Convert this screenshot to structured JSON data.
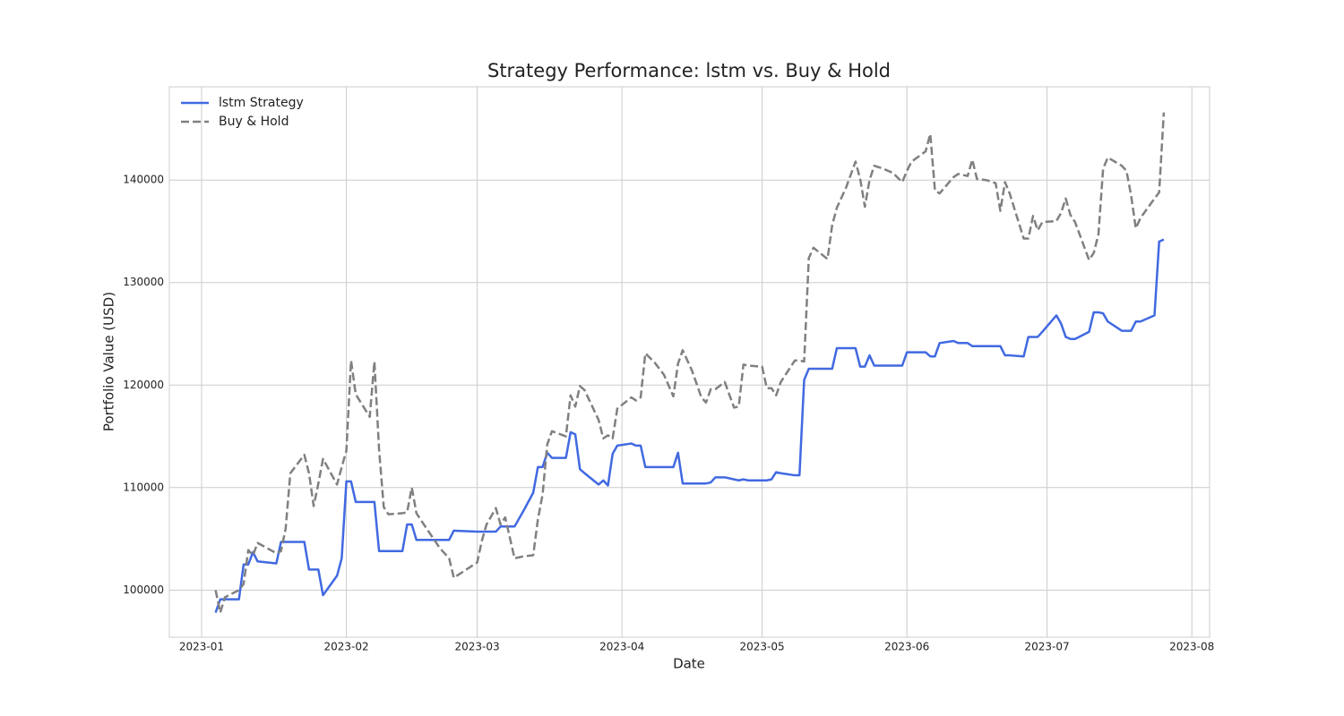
{
  "chart_data": {
    "type": "line",
    "title": "Strategy Performance: lstm vs. Buy & Hold",
    "xlabel": "Date",
    "ylabel": "Portfolio Value (USD)",
    "x": [
      3,
      4,
      5,
      8,
      9,
      10,
      11,
      12,
      16,
      17,
      18,
      19,
      22,
      23,
      24,
      25,
      26,
      29,
      30,
      31,
      32,
      33,
      36,
      37,
      38,
      39,
      40,
      43,
      44,
      45,
      46,
      47,
      51,
      53,
      54,
      59,
      60,
      61,
      63,
      64,
      65,
      67,
      69,
      71,
      72,
      73,
      74,
      75,
      78,
      79,
      80,
      81,
      82,
      85,
      86,
      87,
      88,
      89,
      92,
      93,
      94,
      95,
      97,
      99,
      101,
      102,
      103,
      105,
      107,
      108,
      109,
      110,
      112,
      114,
      115,
      116,
      117,
      120,
      121,
      122,
      123,
      124,
      127,
      128,
      129,
      130,
      131,
      134,
      135,
      136,
      138,
      140,
      141,
      142,
      143,
      144,
      146,
      148,
      150,
      151,
      152,
      155,
      156,
      157,
      158,
      161,
      162,
      164,
      165,
      166,
      168,
      170,
      171,
      172,
      173,
      176,
      177,
      178,
      179,
      180,
      183,
      184,
      185,
      186,
      187,
      190,
      191,
      192,
      193,
      194,
      197,
      198,
      199,
      200,
      201,
      204,
      205,
      206
    ],
    "series": [
      {
        "name": "lstm Strategy",
        "color": "#4169e1",
        "linestyle": "solid",
        "values": [
          97800,
          99100,
          99100,
          99100,
          102500,
          102500,
          103700,
          102800,
          102600,
          104700,
          104700,
          104700,
          104700,
          102000,
          102000,
          102000,
          99500,
          101400,
          103100,
          110600,
          110600,
          108600,
          108600,
          108600,
          103800,
          103800,
          103800,
          103800,
          106400,
          106400,
          104900,
          104900,
          104900,
          104900,
          105800,
          105700,
          105700,
          105700,
          105700,
          106200,
          106200,
          106200,
          107800,
          109500,
          112000,
          112000,
          113400,
          112900,
          112900,
          115400,
          115200,
          111800,
          111400,
          110300,
          110700,
          110200,
          113300,
          114100,
          114300,
          114100,
          114100,
          112000,
          112000,
          112000,
          112000,
          113400,
          110400,
          110400,
          110400,
          110400,
          110500,
          111000,
          111000,
          110800,
          110700,
          110800,
          110700,
          110700,
          110700,
          110800,
          111500,
          111400,
          111200,
          111200,
          120500,
          121600,
          121600,
          121600,
          121600,
          123600,
          123600,
          123600,
          121800,
          121800,
          122900,
          121900,
          121900,
          121900,
          121900,
          123200,
          123200,
          123200,
          122800,
          122800,
          124100,
          124300,
          124100,
          124100,
          123800,
          123800,
          123800,
          123800,
          123800,
          122900,
          122900,
          122800,
          124700,
          124700,
          124700,
          125200,
          126800,
          126000,
          124700,
          124500,
          124500,
          125200,
          127100,
          127100,
          127000,
          126200,
          125300,
          125300,
          125300,
          126200,
          126200,
          126800,
          134000,
          134200
        ]
      },
      {
        "name": "Buy & Hold",
        "color": "#808080",
        "linestyle": "dashed",
        "values": [
          100000,
          97800,
          99300,
          100000,
          100600,
          103900,
          103400,
          104600,
          103600,
          103800,
          106000,
          111400,
          113200,
          111400,
          108200,
          110400,
          112800,
          110300,
          112000,
          113600,
          122400,
          119100,
          116900,
          122300,
          113700,
          108100,
          107400,
          107500,
          107600,
          110000,
          107500,
          106800,
          104100,
          103100,
          101200,
          102700,
          104800,
          106400,
          108000,
          106400,
          107100,
          103100,
          103300,
          103400,
          106900,
          109300,
          114200,
          115500,
          115000,
          119000,
          117900,
          119900,
          119500,
          116600,
          114800,
          115100,
          114800,
          117700,
          118800,
          118500,
          118800,
          123100,
          122200,
          121000,
          118900,
          122100,
          123400,
          121400,
          118800,
          118300,
          119600,
          119600,
          120300,
          117800,
          117900,
          122000,
          121900,
          121800,
          119700,
          119700,
          119000,
          120300,
          122400,
          122400,
          122300,
          132400,
          133400,
          132300,
          135600,
          137300,
          139300,
          141800,
          140100,
          137400,
          140000,
          141400,
          141100,
          140700,
          139800,
          140900,
          141800,
          142800,
          144500,
          139000,
          138700,
          140300,
          140600,
          140400,
          142000,
          140100,
          140000,
          139700,
          137000,
          139800,
          138700,
          134300,
          134300,
          136500,
          135100,
          135900,
          136000,
          136800,
          138200,
          136600,
          135900,
          132200,
          132900,
          134700,
          141100,
          142200,
          141400,
          140900,
          138500,
          135300,
          136300,
          138200,
          138800,
          146600
        ]
      }
    ],
    "xlim": [
      -6.9,
      215.8
    ],
    "xticks": [
      {
        "value": 0,
        "label": "2023-01"
      },
      {
        "value": 31,
        "label": "2023-02"
      },
      {
        "value": 59,
        "label": "2023-03"
      },
      {
        "value": 90,
        "label": "2023-04"
      },
      {
        "value": 120,
        "label": "2023-05"
      },
      {
        "value": 151,
        "label": "2023-06"
      },
      {
        "value": 181,
        "label": "2023-07"
      },
      {
        "value": 212,
        "label": "2023-08"
      }
    ],
    "ylim": [
      95400,
      149100
    ],
    "yticks": [
      100000,
      110000,
      120000,
      130000,
      140000
    ],
    "grid": true,
    "legend": "upper left"
  }
}
